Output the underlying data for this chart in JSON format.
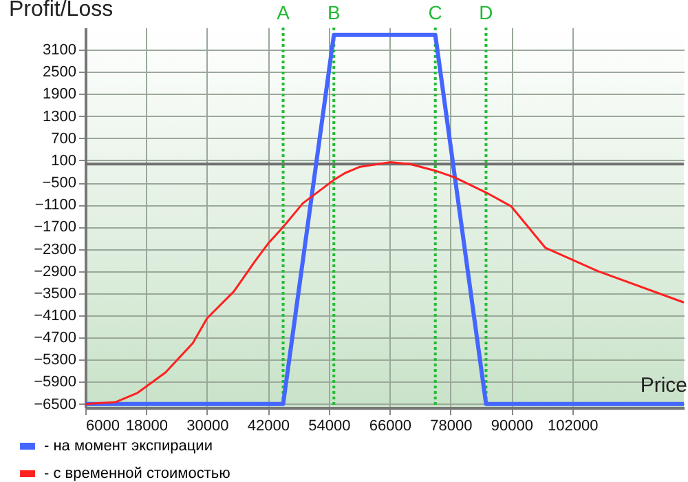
{
  "chart_data": {
    "type": "line",
    "xlabel": "Price",
    "ylabel": "Profit/Loss",
    "xlim": [
      6000,
      124000
    ],
    "ylim": [
      -6600,
      3700
    ],
    "xticks": [
      6000,
      18000,
      30000,
      42000,
      54000,
      66000,
      78000,
      90000,
      102000
    ],
    "yticks": [
      3100,
      2500,
      1900,
      1300,
      700,
      100,
      -500,
      -1100,
      -1700,
      -2300,
      -2900,
      -3500,
      -4100,
      -4700,
      -5300,
      -5900,
      -6500
    ],
    "grid": true,
    "legend": "bottom left",
    "marker": "none",
    "line_style": "solid",
    "series": [
      {
        "name": "- на момент экспирации",
        "color": "#4466ff",
        "x": [
          6000,
          45000,
          55000,
          75000,
          85000,
          124000
        ],
        "values": [
          -6500,
          -6500,
          3500,
          3500,
          -6500,
          -6500
        ]
      },
      {
        "name": "- с временной стоимостью",
        "color": "#ff2020",
        "x": [
          6000,
          12000,
          16300,
          21800,
          27200,
          30000,
          35300,
          39400,
          42000,
          44900,
          48900,
          55000,
          57100,
          60000,
          66000,
          70000,
          75000,
          78800,
          85000,
          90000,
          96700,
          107000,
          124000
        ],
        "values": [
          -6500,
          -6450,
          -6200,
          -5650,
          -4850,
          -4180,
          -3450,
          -2640,
          -2160,
          -1720,
          -1060,
          -430,
          -250,
          -80,
          50,
          0,
          -180,
          -360,
          -770,
          -1150,
          -2270,
          -2900,
          -3750
        ]
      }
    ],
    "ref_lines": [
      {
        "axis": "x",
        "value": 45000,
        "label": "A",
        "color": "#22bb33",
        "line_style": "dotted"
      },
      {
        "axis": "x",
        "value": 55000,
        "label": "B",
        "color": "#22bb33",
        "line_style": "dotted"
      },
      {
        "axis": "x",
        "value": 75000,
        "label": "C",
        "color": "#22bb33",
        "line_style": "dotted"
      },
      {
        "axis": "x",
        "value": 85000,
        "label": "D",
        "color": "#22bb33",
        "line_style": "dotted"
      },
      {
        "axis": "y",
        "value": 0,
        "label": null,
        "color": "#707070",
        "line_style": "solid"
      }
    ]
  }
}
